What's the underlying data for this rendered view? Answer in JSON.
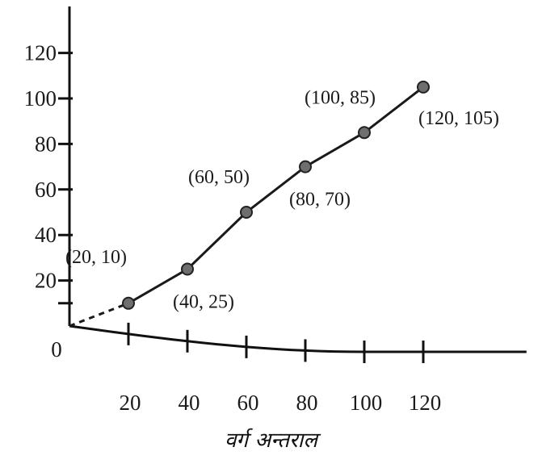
{
  "chart_data": {
    "type": "line",
    "title": "",
    "xlabel": "वर्ग अन्तराल",
    "ylabel": "",
    "origin_label": "0",
    "x_ticks": [
      20,
      40,
      60,
      80,
      100,
      120
    ],
    "y_ticks": [
      20,
      40,
      60,
      80,
      100,
      120
    ],
    "xlim": [
      0,
      120
    ],
    "ylim": [
      0,
      120
    ],
    "grid": false,
    "legend": "none",
    "series": [
      {
        "points": [
          {
            "x": 20,
            "y": 10,
            "label": "(20, 10)"
          },
          {
            "x": 40,
            "y": 25,
            "label": "(40, 25)"
          },
          {
            "x": 60,
            "y": 50,
            "label": "(60, 50)"
          },
          {
            "x": 80,
            "y": 70,
            "label": "(80, 70)"
          },
          {
            "x": 100,
            "y": 85,
            "label": "(100, 85)"
          },
          {
            "x": 120,
            "y": 105,
            "label": "(120, 105)"
          }
        ]
      }
    ],
    "dashed_segment_from_origin": true,
    "colors": {
      "line": "#1a1a1a",
      "point": "#6e6e6e"
    }
  }
}
